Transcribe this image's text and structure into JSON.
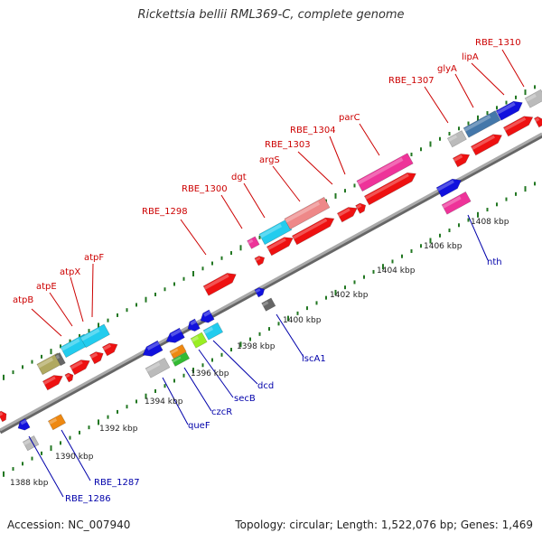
{
  "title": "Rickettsia bellii RML369-C, complete genome",
  "accession": "Accession: NC_007940",
  "summary": "Topology: circular; Length: 1,522,076 bp; Genes: 1,469",
  "colors": {
    "red": "#ee1111",
    "blue": "#1111dd",
    "cyan": "#22ccee",
    "pink": "#ee3399",
    "salmon": "#ee8888",
    "steelblue": "#4477aa",
    "olive": "#b0a860",
    "gray": "#bbbbbb",
    "darkgray": "#666666",
    "orange": "#ee8811",
    "lime": "#99ee22",
    "green": "#33bb33",
    "label_red": "#cc0000",
    "label_blue": "#0000aa",
    "tick": "#227722"
  },
  "scale_labels": [
    "1388 kbp",
    "1390 kbp",
    "1392 kbp",
    "1394 kbp",
    "1396 kbp",
    "1398 kbp",
    "1400 kbp",
    "1402 kbp",
    "1404 kbp",
    "1406 kbp",
    "1408 kbp"
  ],
  "gene_labels_top": [
    "atpB",
    "atpE",
    "atpX",
    "atpF",
    "RBE_1298",
    "RBE_1300",
    "dgt",
    "argS",
    "RBE_1303",
    "RBE_1304",
    "parC",
    "RBE_1307",
    "glyA",
    "lipA",
    "RBE_1310"
  ],
  "gene_labels_bottom": [
    "RBE_1286",
    "RBE_1287",
    "queF",
    "czcR",
    "secB",
    "dcd",
    "iscA1",
    "nth"
  ]
}
